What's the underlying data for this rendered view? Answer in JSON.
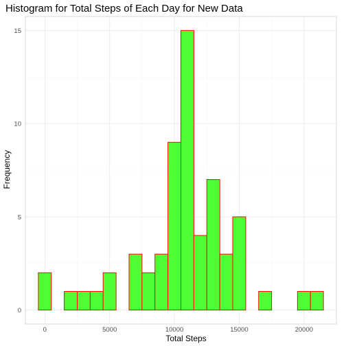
{
  "chart_data": {
    "type": "bar",
    "title": "Histogram for Total Steps of Each Day for New Data",
    "xlabel": "Total Steps",
    "ylabel": "Frequency",
    "bin_width": 1000,
    "bin_centers": [
      0,
      1000,
      2000,
      3000,
      4000,
      5000,
      6000,
      7000,
      8000,
      9000,
      10000,
      11000,
      12000,
      13000,
      14000,
      15000,
      16000,
      17000,
      18000,
      19000,
      20000,
      21000
    ],
    "values": [
      2,
      0,
      1,
      1,
      1,
      2,
      0,
      3,
      2,
      3,
      9,
      15,
      4,
      7,
      3,
      5,
      0,
      1,
      0,
      0,
      1,
      1
    ],
    "xlim": [
      -1500,
      22500
    ],
    "ylim": [
      -0.75,
      15.75
    ],
    "xticks": [
      0,
      5000,
      10000,
      15000,
      20000
    ],
    "yticks": [
      0,
      5,
      10,
      15
    ],
    "grid": true,
    "legend": "none",
    "colors": {
      "fill": "#4dff33",
      "outline": "#ff0000",
      "grid_major": "#ebebeb",
      "grid_minor": "#f5f5f5",
      "panel_border": "#d9d9d9",
      "tick_text": "#4d4d4d"
    }
  }
}
